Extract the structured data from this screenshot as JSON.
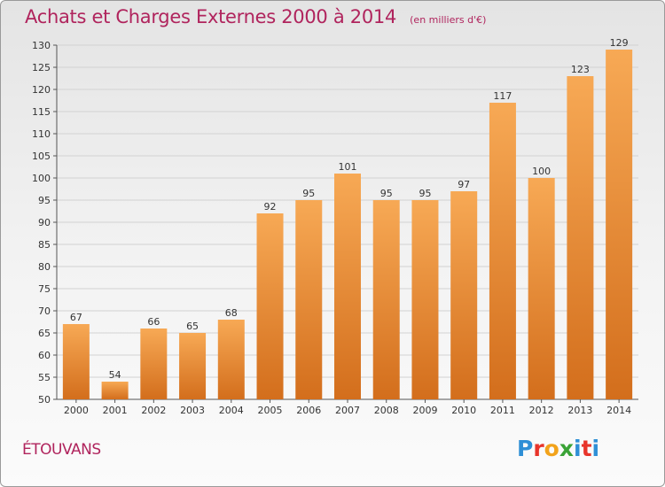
{
  "title": "Achats et Charges Externes 2000 à 2014",
  "unit": "(en milliers d'€)",
  "commune": "ÉTOUVANS",
  "brand": "Proxiti",
  "colors": {
    "bar_top": "#f7a955",
    "bar_bottom": "#d36e1c",
    "title": "#b0245d"
  },
  "chart_data": {
    "type": "bar",
    "categories": [
      "2000",
      "2001",
      "2002",
      "2003",
      "2004",
      "2005",
      "2006",
      "2007",
      "2008",
      "2009",
      "2010",
      "2011",
      "2012",
      "2013",
      "2014"
    ],
    "values": [
      67,
      54,
      66,
      65,
      68,
      92,
      95,
      101,
      95,
      95,
      97,
      117,
      100,
      123,
      129
    ],
    "ylim": [
      50,
      130
    ],
    "yticks": [
      50,
      55,
      60,
      65,
      70,
      75,
      80,
      85,
      90,
      95,
      100,
      105,
      110,
      115,
      120,
      125,
      130
    ],
    "grid": true
  }
}
